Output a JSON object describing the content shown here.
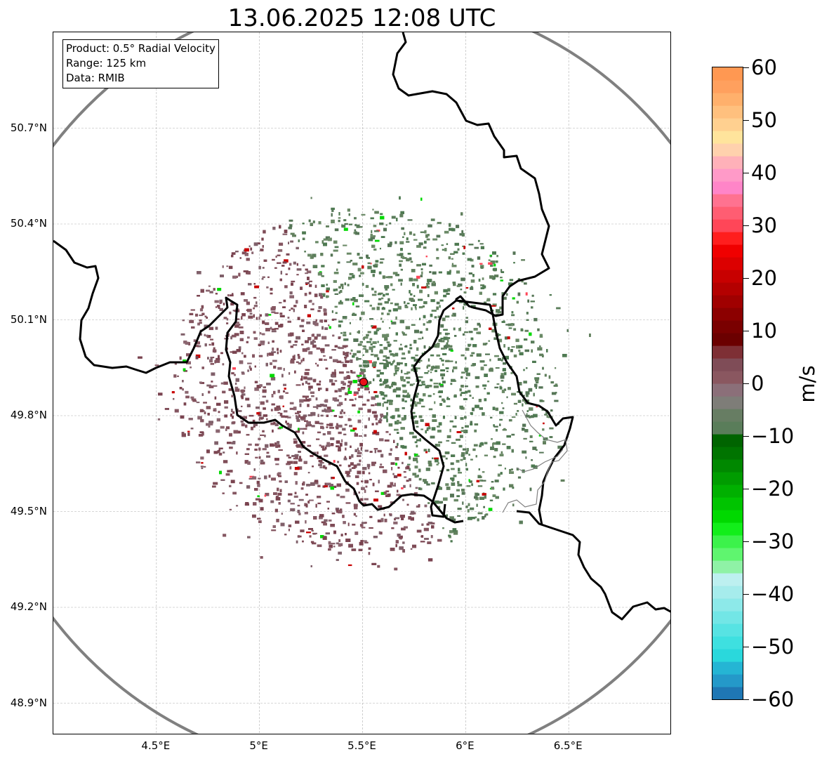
{
  "title": "13.06.2025 12:08 UTC",
  "info_box": {
    "product": "Product: 0.5° Radial Velocity",
    "range": "Range: 125 km",
    "data": "Data: RMIB"
  },
  "map": {
    "lon_min": 4.0,
    "lon_max": 7.0,
    "lat_min": 48.8,
    "lat_max": 51.0,
    "lat_labels": [
      "50.7°N",
      "50.4°N",
      "50.1°N",
      "49.8°N",
      "49.5°N",
      "49.2°N",
      "48.9°N"
    ],
    "lat_values": [
      50.7,
      50.4,
      50.1,
      49.8,
      49.5,
      49.2,
      48.9
    ],
    "lon_labels": [
      "4.5°E",
      "5°E",
      "5.5°E",
      "6°E",
      "6.5°E"
    ],
    "lon_values": [
      4.5,
      5.0,
      5.5,
      6.0,
      6.5
    ],
    "radar_site": {
      "lon": 5.505,
      "lat": 49.914
    },
    "range_km": 125,
    "colors": {
      "range_ring": "#808080",
      "border": "#000000",
      "province": "#808080",
      "grid": "#b0b0b0",
      "site_fill": "#e8101a",
      "echo_inbound_green": "#5a7d5a",
      "echo_outbound_maroon": "#7f4c57"
    }
  },
  "colorbar": {
    "unit": "m/s",
    "min": -60,
    "max": 60,
    "tick_values": [
      60,
      50,
      40,
      30,
      20,
      10,
      0,
      -10,
      -20,
      -30,
      -40,
      -50,
      -60
    ],
    "tick_labels": [
      "60",
      "50",
      "40",
      "30",
      "20",
      "10",
      "0",
      "−10",
      "−20",
      "−30",
      "−40",
      "−50",
      "−60"
    ],
    "colors_bottom_to_top": [
      "#1f77b4",
      "#2499c9",
      "#25b5d4",
      "#2ad8dc",
      "#3ee0e0",
      "#57e3e3",
      "#72e6e6",
      "#8de9e9",
      "#a6ecec",
      "#bdf0f0",
      "#8ff2a6",
      "#5ff56f",
      "#3cf24b",
      "#12ee1a",
      "#00d900",
      "#00c400",
      "#00b000",
      "#009c00",
      "#008800",
      "#007400",
      "#006400",
      "#5a7d5a",
      "#677d63",
      "#7e7d78",
      "#8b6f79",
      "#8a5760",
      "#7f4c57",
      "#7e2f35",
      "#6b0000",
      "#7a0000",
      "#8c0000",
      "#a00000",
      "#b40000",
      "#c80000",
      "#dc0000",
      "#f00000",
      "#ff1e1e",
      "#ff4658",
      "#ff5d72",
      "#ff7290",
      "#ff85c8",
      "#ff9ac8",
      "#ffb1b9",
      "#ffd1ad",
      "#ffe49c",
      "#ffd090",
      "#ffc07e",
      "#ffb06c",
      "#ffa05e",
      "#ff9852"
    ]
  }
}
